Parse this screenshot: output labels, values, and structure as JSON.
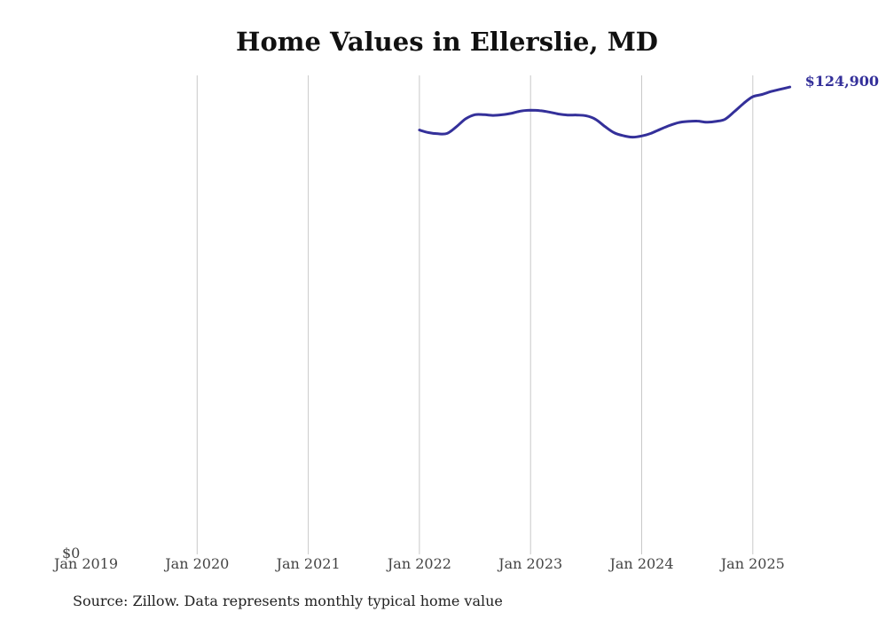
{
  "chart_data": {
    "type": "line",
    "title": "Home Values in Ellerslie, MD",
    "xlabel": "",
    "ylabel": "",
    "x_ticks": [
      "Jan 2019",
      "Jan 2020",
      "Jan 2021",
      "Jan 2022",
      "Jan 2023",
      "Jan 2024",
      "Jan 2025"
    ],
    "y_tick_labels": [
      "$0"
    ],
    "ylim": [
      0,
      128000
    ],
    "grid": "vertical",
    "end_label": "$124,900",
    "line_color": "#34309a",
    "series": [
      {
        "dates": [
          "2022-01",
          "2022-02",
          "2022-03",
          "2022-04",
          "2022-05",
          "2022-06",
          "2022-07",
          "2022-08",
          "2022-09",
          "2022-10",
          "2022-11",
          "2022-12",
          "2023-01",
          "2023-02",
          "2023-03",
          "2023-04",
          "2023-05",
          "2023-06",
          "2023-07",
          "2023-08",
          "2023-09",
          "2023-10",
          "2023-11",
          "2023-12",
          "2024-01",
          "2024-02",
          "2024-03",
          "2024-04",
          "2024-05",
          "2024-06",
          "2024-07",
          "2024-08",
          "2024-09",
          "2024-10",
          "2024-11",
          "2024-12",
          "2025-01",
          "2025-02",
          "2025-03",
          "2025-04",
          "2025-05"
        ],
        "values": [
          113400,
          112700,
          112400,
          112500,
          114300,
          116400,
          117500,
          117500,
          117300,
          117500,
          117900,
          118500,
          118700,
          118600,
          118200,
          117700,
          117400,
          117400,
          117200,
          116300,
          114400,
          112700,
          111900,
          111500,
          111800,
          112500,
          113600,
          114600,
          115400,
          115700,
          115800,
          115500,
          115700,
          116300,
          118300,
          120500,
          122300,
          122900,
          123700,
          124300,
          124900
        ]
      }
    ]
  },
  "footer": {
    "source": "Source: Zillow. Data represents monthly typical home value"
  }
}
